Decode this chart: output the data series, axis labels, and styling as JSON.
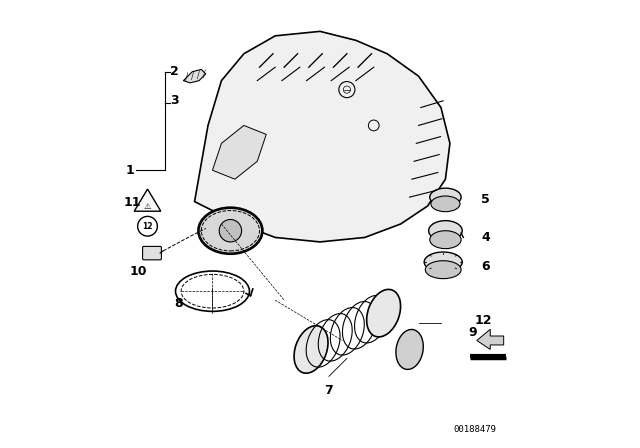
{
  "background_color": "#ffffff",
  "diagram_id": "00188479",
  "line_color": "#000000",
  "text_color": "#000000",
  "font_size_labels": 9,
  "line_width": 0.8
}
